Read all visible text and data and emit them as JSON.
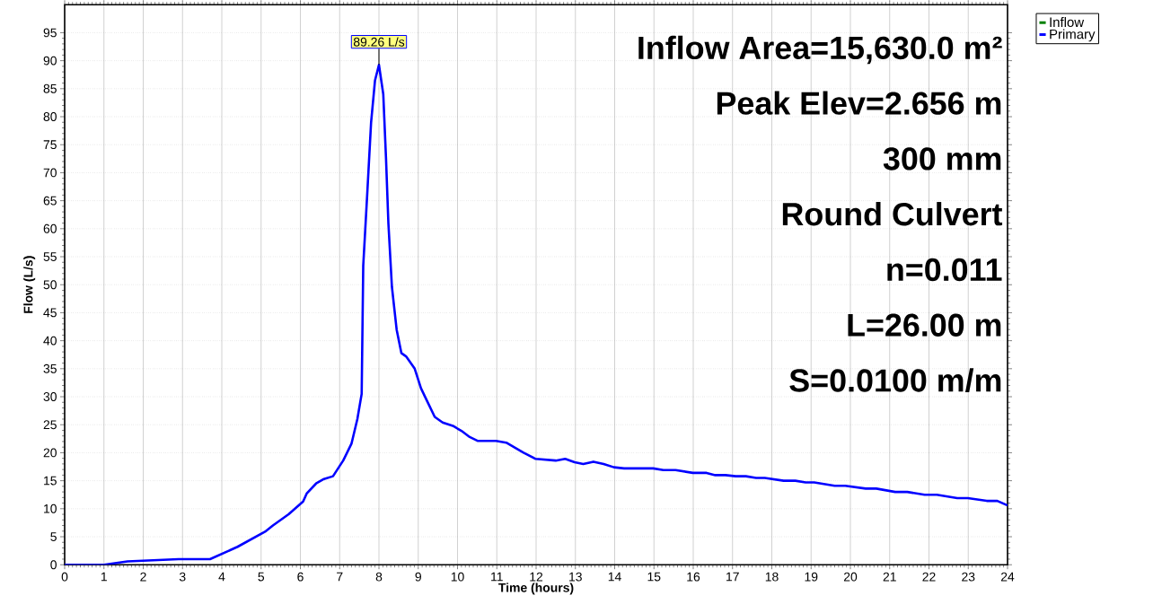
{
  "chart_data": {
    "type": "line",
    "xlabel": "Time  (hours)",
    "ylabel": "Flow  (L/s)",
    "xlim": [
      0,
      24
    ],
    "ylim": [
      0,
      100
    ],
    "xticks": [
      0,
      1,
      2,
      3,
      4,
      5,
      6,
      7,
      8,
      9,
      10,
      11,
      12,
      13,
      14,
      15,
      16,
      17,
      18,
      19,
      20,
      21,
      22,
      23,
      24
    ],
    "yticks": [
      0,
      5,
      10,
      15,
      20,
      25,
      30,
      35,
      40,
      45,
      50,
      55,
      60,
      65,
      70,
      75,
      80,
      85,
      90,
      95
    ],
    "grid": true,
    "legend": "top right",
    "line_style": "solid",
    "marker": "none",
    "annotations": [
      {
        "text": "89.26 L/s",
        "x": 8,
        "y": 89.26
      },
      "Inflow Area=15,630.0 m²",
      "Peak Elev=2.656 m",
      "300 mm",
      "Round Culvert",
      "n=0.011",
      "L=26.00 m",
      "S=0.0100 m/m"
    ],
    "series": [
      {
        "name": "Inflow",
        "color": "#008000"
      },
      {
        "name": "Primary",
        "color": "#0000ff",
        "x": [
          0,
          1,
          1.6,
          2.9,
          3.7,
          4.4,
          5.1,
          5.3,
          5.7,
          6.07,
          6.16,
          6.4,
          6.6,
          6.83,
          7.09,
          7.3,
          7.45,
          7.56,
          7.6,
          7.7,
          7.8,
          7.9,
          8,
          8.11,
          8.18,
          8.24,
          8.33,
          8.45,
          8.57,
          8.69,
          8.91,
          9.07,
          9.22,
          9.42,
          9.62,
          9.88,
          10.1,
          10.31,
          10.52,
          10.98,
          11.24,
          11.68,
          11.99,
          12.5,
          12.74,
          12.98,
          13.2,
          13.46,
          13.72,
          13.98,
          14.24,
          14.98,
          15.24,
          15.55,
          15.99,
          16.34,
          16.56,
          16.82,
          17.08,
          17.34,
          17.6,
          17.82,
          18.3,
          18.6,
          18.86,
          19.08,
          19.6,
          19.87,
          20.39,
          20.66,
          21.14,
          21.45,
          21.89,
          22.2,
          22.72,
          22.99,
          23.47,
          23.74,
          24
        ],
        "values": [
          0,
          0,
          0.6,
          1,
          1,
          3.2,
          5.9,
          7,
          9,
          11.3,
          12.7,
          14.5,
          15.3,
          15.8,
          18.6,
          21.6,
          26,
          30.5,
          53.4,
          66,
          79,
          86.5,
          89.26,
          84,
          72.5,
          61,
          49.6,
          42,
          37.8,
          37.2,
          35,
          31.5,
          29.3,
          26.4,
          25.4,
          24.8,
          23.9,
          22.8,
          22.1,
          22.1,
          21.8,
          20.0,
          18.9,
          18.6,
          18.9,
          18.3,
          18.0,
          18.4,
          18.0,
          17.4,
          17.2,
          17.2,
          16.9,
          16.9,
          16.4,
          16.4,
          16.0,
          16.0,
          15.8,
          15.8,
          15.5,
          15.5,
          15.0,
          15.0,
          14.7,
          14.7,
          14.1,
          14.1,
          13.6,
          13.6,
          13.0,
          13.0,
          12.5,
          12.5,
          11.9,
          11.9,
          11.4,
          11.4,
          10.6
        ]
      }
    ]
  }
}
